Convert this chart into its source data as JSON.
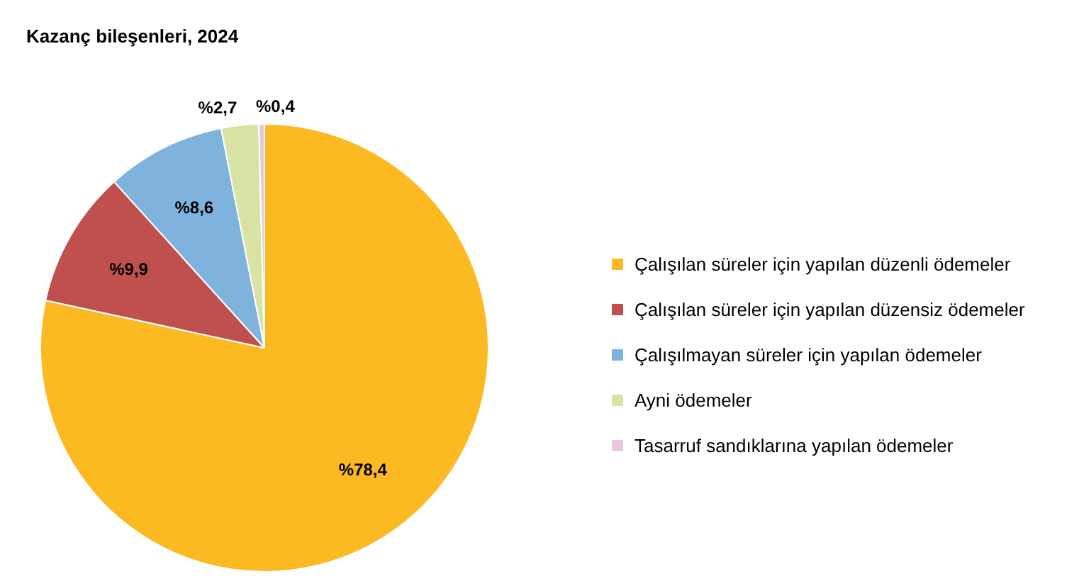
{
  "chart_data": {
    "type": "pie",
    "title": "Kazanç bileşenleri, 2024",
    "categories": [
      "Çalışılan süreler için yapılan düzenli ödemeler",
      "Çalışılan süreler için yapılan düzensiz ödemeler",
      "Çalışılmayan süreler için yapılan ödemeler",
      "Ayni ödemeler",
      "Tasarruf sandıklarına yapılan ödemeler"
    ],
    "values": [
      78.4,
      9.9,
      8.6,
      2.7,
      0.4
    ],
    "value_labels": [
      "%78,4",
      "%9,9",
      "%8,6",
      "%2,7",
      "%0,4"
    ],
    "colors": [
      "#fbb922",
      "#c0504d",
      "#7fb2dc",
      "#d7e4a4",
      "#e8c6dd"
    ],
    "legend": "right"
  }
}
